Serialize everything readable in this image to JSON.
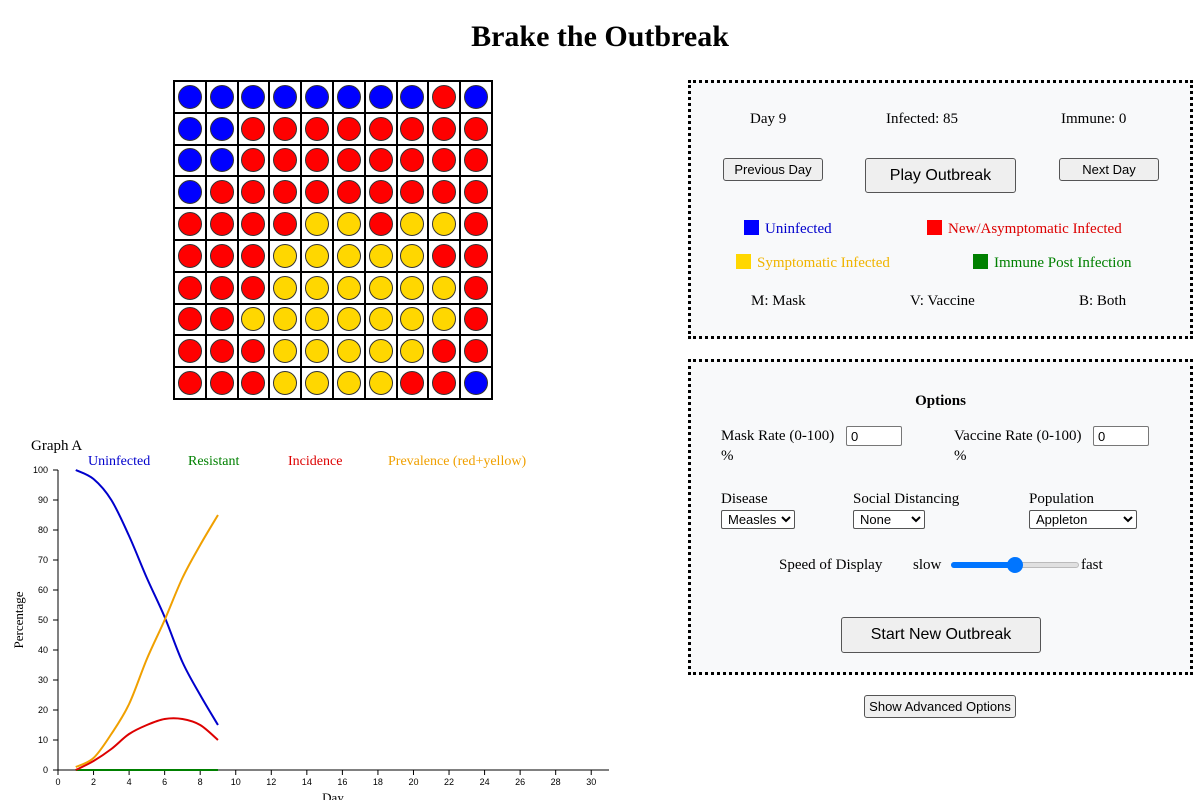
{
  "title": "Brake the Outbreak",
  "colors": {
    "uninfected": "#0000ff",
    "infected": "#ff0000",
    "symptomatic": "#ffd700",
    "immune": "#008000"
  },
  "grid": [
    "BBBBBBBBRB",
    "BBRRRRRRRR",
    "BBRRRRRRRR",
    "BRRRRRRRRR",
    "RRRRYYRYYR",
    "RRRYYYYYRR",
    "RRRYYYYYYR",
    "RRYYYYYYYR",
    "RRRYYYYYRR",
    "RRRYYYYRRB"
  ],
  "status": {
    "day": "Day 9",
    "infected": "Infected: 85",
    "immune": "Immune: 0"
  },
  "controls": {
    "prev": "Previous Day",
    "play": "Play Outbreak",
    "next": "Next Day"
  },
  "legend": {
    "uninfected": "Uninfected",
    "new_infected": "New/Asymptomatic Infected",
    "symptomatic": "Symptomatic Infected",
    "immune": "Immune Post Infection"
  },
  "keys": {
    "mask": "M: Mask",
    "vaccine": "V: Vaccine",
    "both": "B: Both"
  },
  "options": {
    "title": "Options",
    "mask_rate_label": "Mask Rate (0-100)",
    "mask_rate_value": "0",
    "vaccine_rate_label": "Vaccine Rate (0-100)",
    "vaccine_rate_value": "0",
    "percent": "%",
    "disease_label": "Disease",
    "disease_value": "Measles",
    "distancing_label": "Social Distancing",
    "distancing_value": "None",
    "population_label": "Population",
    "population_value": "Appleton",
    "speed_label": "Speed of Display",
    "slow": "slow",
    "fast": "fast",
    "speed_level": 0.5,
    "start_button": "Start New Outbreak"
  },
  "advanced_button": "Show Advanced Options",
  "chart_data": {
    "type": "line",
    "title": "Graph A",
    "ylabel": "Percentage",
    "xlabel": "Day",
    "xlim": [
      0,
      31
    ],
    "ylim": [
      0,
      100
    ],
    "xticks": [
      0,
      2,
      4,
      6,
      8,
      10,
      12,
      14,
      16,
      18,
      20,
      22,
      24,
      26,
      28,
      30
    ],
    "yticks": [
      0,
      10,
      20,
      30,
      40,
      50,
      60,
      70,
      80,
      90,
      100
    ],
    "x": [
      1,
      2,
      3,
      4,
      5,
      6,
      7,
      8,
      9
    ],
    "series": [
      {
        "name": "Uninfected",
        "color": "#0000cc",
        "values": [
          100,
          97,
          90,
          78,
          64,
          51,
          36,
          25,
          15
        ]
      },
      {
        "name": "Resistant",
        "color": "#008000",
        "values": [
          0,
          0,
          0,
          0,
          0,
          0,
          0,
          0,
          0
        ]
      },
      {
        "name": "Incidence",
        "color": "#dd0000",
        "values": [
          0,
          3,
          7,
          12,
          15,
          17,
          17,
          15,
          10
        ]
      },
      {
        "name": "Prevalence (red+yellow)",
        "color": "#f0a000",
        "values": [
          1,
          4,
          12,
          22,
          37,
          50,
          64,
          75,
          85
        ]
      }
    ]
  }
}
